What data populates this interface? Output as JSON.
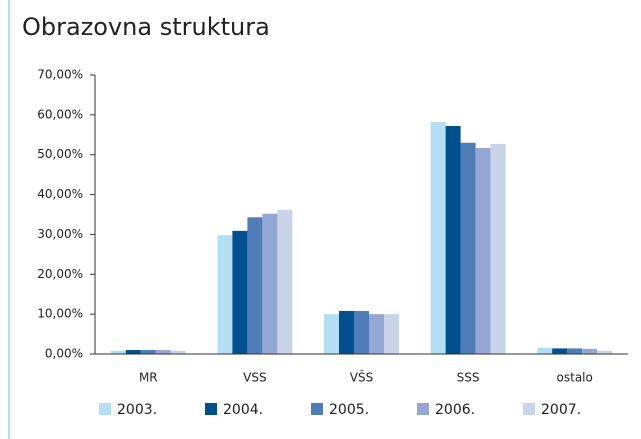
{
  "chart_data": {
    "type": "bar",
    "title": "Obrazovna struktura",
    "categories": [
      "MR",
      "VSS",
      "VŠS",
      "SSS",
      "ostalo"
    ],
    "series": [
      {
        "name": "2003.",
        "color": "#b3dff5",
        "values": [
          0.8,
          29.8,
          10.0,
          58.2,
          1.6
        ]
      },
      {
        "name": "2004.",
        "color": "#004f8f",
        "values": [
          1.0,
          30.9,
          10.8,
          57.2,
          1.4
        ]
      },
      {
        "name": "2005.",
        "color": "#4f7db8",
        "values": [
          1.0,
          34.3,
          10.8,
          53.0,
          1.4
        ]
      },
      {
        "name": "2006.",
        "color": "#95a8d5",
        "values": [
          1.0,
          35.2,
          10.0,
          51.7,
          1.3
        ]
      },
      {
        "name": "2007.",
        "color": "#c9d3ea",
        "values": [
          0.8,
          36.2,
          10.0,
          52.7,
          0.8
        ]
      }
    ],
    "ylim": [
      0,
      70
    ],
    "yticks": [
      {
        "value": 0,
        "label": "0,00%"
      },
      {
        "value": 10,
        "label": "10,00%"
      },
      {
        "value": 20,
        "label": "20,00%"
      },
      {
        "value": 30,
        "label": "30,00%"
      },
      {
        "value": 40,
        "label": "40,00%"
      },
      {
        "value": 50,
        "label": "50,00%"
      },
      {
        "value": 60,
        "label": "60,00%"
      },
      {
        "value": 70,
        "label": "70,00%"
      }
    ],
    "grid": false
  }
}
